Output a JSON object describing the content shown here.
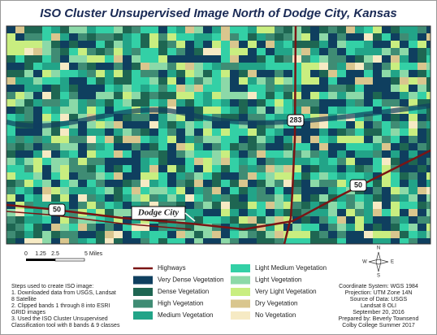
{
  "title": "ISO Cluster Unsupervised Image North of Dodge City, Kansas",
  "map": {
    "city": "Dodge City",
    "routes": [
      "283",
      "50",
      "50"
    ]
  },
  "scale_bar": {
    "labels": [
      "0",
      "1.25",
      "2.5",
      "5 Miles"
    ]
  },
  "north_arrow": {
    "n": "N",
    "s": "S",
    "e": "E",
    "w": "W"
  },
  "legend": {
    "highway": {
      "label": "Highways",
      "color": "#7a1414"
    },
    "classes": [
      {
        "label": "Very Dense Vegetation",
        "color": "#0f3f5f"
      },
      {
        "label": "Dense Vegetation",
        "color": "#1e6652"
      },
      {
        "label": "High Vegetation",
        "color": "#3f8c74"
      },
      {
        "label": "Medium Vegetation",
        "color": "#22a488"
      },
      {
        "label": "Light Medium Vegetation",
        "color": "#33d0a6"
      },
      {
        "label": "Light Vegetation",
        "color": "#8cd9a8"
      },
      {
        "label": "Very Light Vegetation",
        "color": "#c9ee80"
      },
      {
        "label": "Dry Vegetation",
        "color": "#d9c68e"
      },
      {
        "label": "No Vegetation",
        "color": "#f6eac4"
      }
    ]
  },
  "notes": [
    "Steps used to create ISO image:",
    "1. Downloaded data from USGS, Landsat",
    "8 Satellite",
    "2. Clipped bands 1 through 8 into ESRI",
    "GRID images",
    "3. Used the ISO Cluster Unsupervised",
    "Classification tool with 8 bands & 9 classes"
  ],
  "credits": [
    "Coordinate System: WGS 1984",
    "Projection: UTM Zone 14N",
    "Source of Data: USGS",
    "Landsat 8 OLI",
    "September 20, 2016",
    "Prepared by: Beverly Townsend",
    "Colby College Summer 2017"
  ]
}
